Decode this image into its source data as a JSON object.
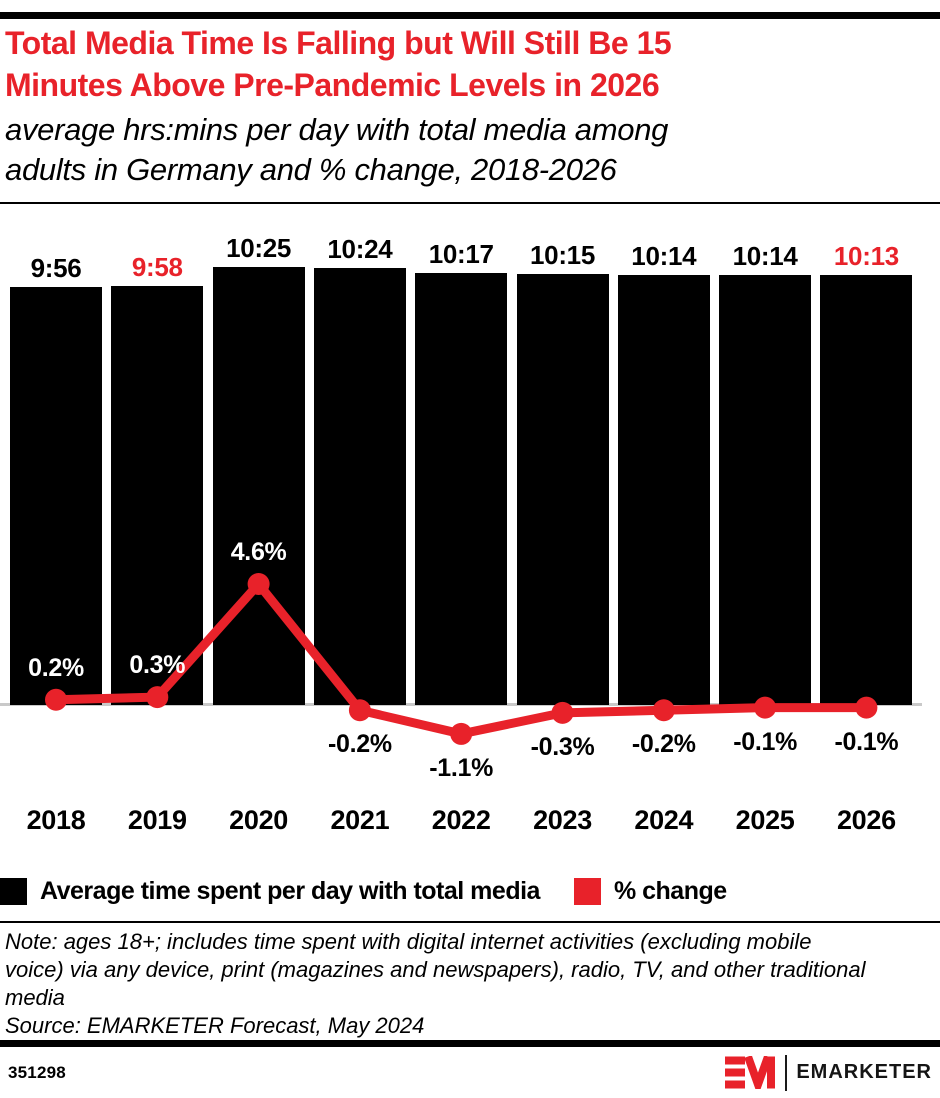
{
  "header": {
    "title_lines": [
      "Total Media Time Is Falling but Will Still Be 15",
      "Minutes Above Pre-Pandemic Levels in 2026"
    ],
    "subtitle_lines": [
      "average hrs:mins per day with total media among",
      "adults in Germany and % change, 2018-2026"
    ]
  },
  "chart_data": {
    "type": "bar+line",
    "categories": [
      "2018",
      "2019",
      "2020",
      "2021",
      "2022",
      "2023",
      "2024",
      "2025",
      "2026"
    ],
    "series": [
      {
        "name": "Average time spent per day with total media",
        "type": "bar",
        "unit": "hrs:mins per day",
        "labels": [
          "9:56",
          "9:58",
          "10:25",
          "10:24",
          "10:17",
          "10:15",
          "10:14",
          "10:14",
          "10:13"
        ],
        "minutes": [
          596,
          598,
          625,
          624,
          617,
          615,
          614,
          614,
          613
        ],
        "label_accent": [
          false,
          true,
          false,
          false,
          false,
          false,
          false,
          false,
          true
        ]
      },
      {
        "name": "% change",
        "type": "line",
        "unit": "% change",
        "values": [
          0.2,
          0.3,
          4.6,
          -0.2,
          -1.1,
          -0.3,
          -0.2,
          -0.1,
          -0.1
        ],
        "labels": [
          "0.2%",
          "0.3%",
          "4.6%",
          "-0.2%",
          "-1.1%",
          "-0.3%",
          "-0.2%",
          "-0.1%",
          "-0.1%"
        ]
      }
    ],
    "colors": {
      "bar": "#000000",
      "line": "#e8222a",
      "accent_label": "#e8222a",
      "axis": "#c9c9c9"
    },
    "legend": [
      {
        "label": "Average time spent per day with total media",
        "color": "#000000"
      },
      {
        "label": "% change",
        "color": "#e8222a"
      }
    ],
    "layout": {
      "grid": false,
      "legend_position": "bottom-left",
      "value_labels": "outside-bar-top and on-line"
    }
  },
  "notes": {
    "note_lines": [
      "Note: ages 18+; includes time spent with digital internet activities (excluding mobile",
      "voice) via any device, print (magazines and newspapers), radio, TV, and other traditional",
      "media"
    ],
    "source": "Source: EMARKETER Forecast, May 2024"
  },
  "footer": {
    "chart_id": "351298",
    "brand": "EMARKETER"
  }
}
